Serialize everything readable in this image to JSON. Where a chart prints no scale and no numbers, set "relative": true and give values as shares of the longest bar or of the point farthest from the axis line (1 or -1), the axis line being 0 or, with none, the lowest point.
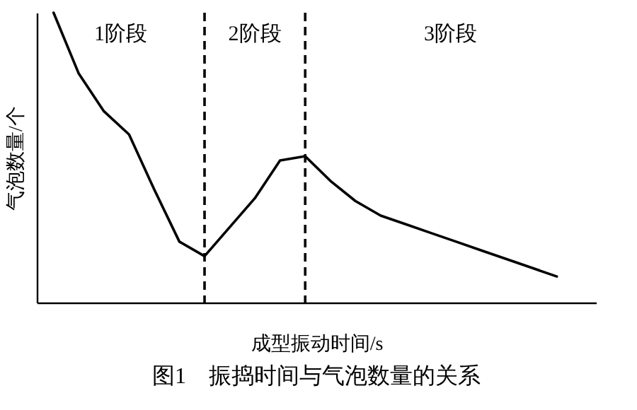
{
  "chart_data": {
    "type": "line",
    "title": "图1　振捣时间与气泡数量的关系",
    "xlabel": "成型振动时间/s",
    "ylabel": "气泡数量/个",
    "relative": true,
    "categories": [
      null,
      null,
      null,
      null,
      null,
      null,
      null,
      null,
      null,
      null,
      null,
      null,
      null,
      null,
      null,
      null,
      null,
      null,
      null,
      null,
      null
    ],
    "series": [
      {
        "color": "#000000",
        "values": [
          1,
          0.79,
          0.66,
          0.58,
          0.39,
          0.21,
          0.16,
          0.26,
          0.36,
          0.49,
          0.505,
          0.42,
          0.35,
          0.3,
          0.27,
          0.24,
          0.21,
          0.18,
          0.15,
          0.12,
          0.09
        ]
      }
    ],
    "annotations": [
      "1阶段",
      "2阶段",
      "3阶段"
    ],
    "marker": "none",
    "line_style": "solid"
  }
}
